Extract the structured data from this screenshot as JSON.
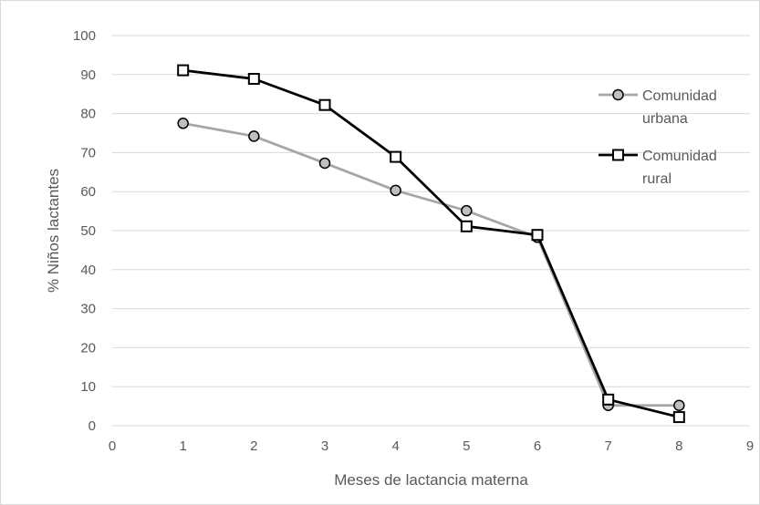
{
  "chart_data": {
    "type": "line",
    "title": "",
    "xlabel": "Meses de lactancia materna",
    "ylabel": "% Niños lactantes",
    "xlim": [
      0,
      9
    ],
    "ylim": [
      0,
      100
    ],
    "xticks": [
      0,
      1,
      2,
      3,
      4,
      5,
      6,
      7,
      8,
      9
    ],
    "yticks": [
      0,
      10,
      20,
      30,
      40,
      50,
      60,
      70,
      80,
      90,
      100
    ],
    "grid": "horizontal",
    "legend_position": "right",
    "series": [
      {
        "name": "Comunidad urbana",
        "legend_lines": [
          "Comunidad",
          "urbana"
        ],
        "marker": "circle",
        "color": "#a6a6a6",
        "x": [
          1,
          2,
          3,
          4,
          5,
          6,
          7,
          8
        ],
        "y": [
          77.5,
          74.2,
          67.3,
          60.3,
          55.1,
          48.3,
          5.2,
          5.2
        ]
      },
      {
        "name": "Comunidad rural",
        "legend_lines": [
          "Comunidad",
          "rural"
        ],
        "marker": "square",
        "color": "#000000",
        "x": [
          1,
          2,
          3,
          4,
          5,
          6,
          7,
          8
        ],
        "y": [
          91.1,
          88.9,
          82.2,
          68.9,
          51.1,
          48.9,
          6.7,
          2.2
        ]
      }
    ]
  }
}
